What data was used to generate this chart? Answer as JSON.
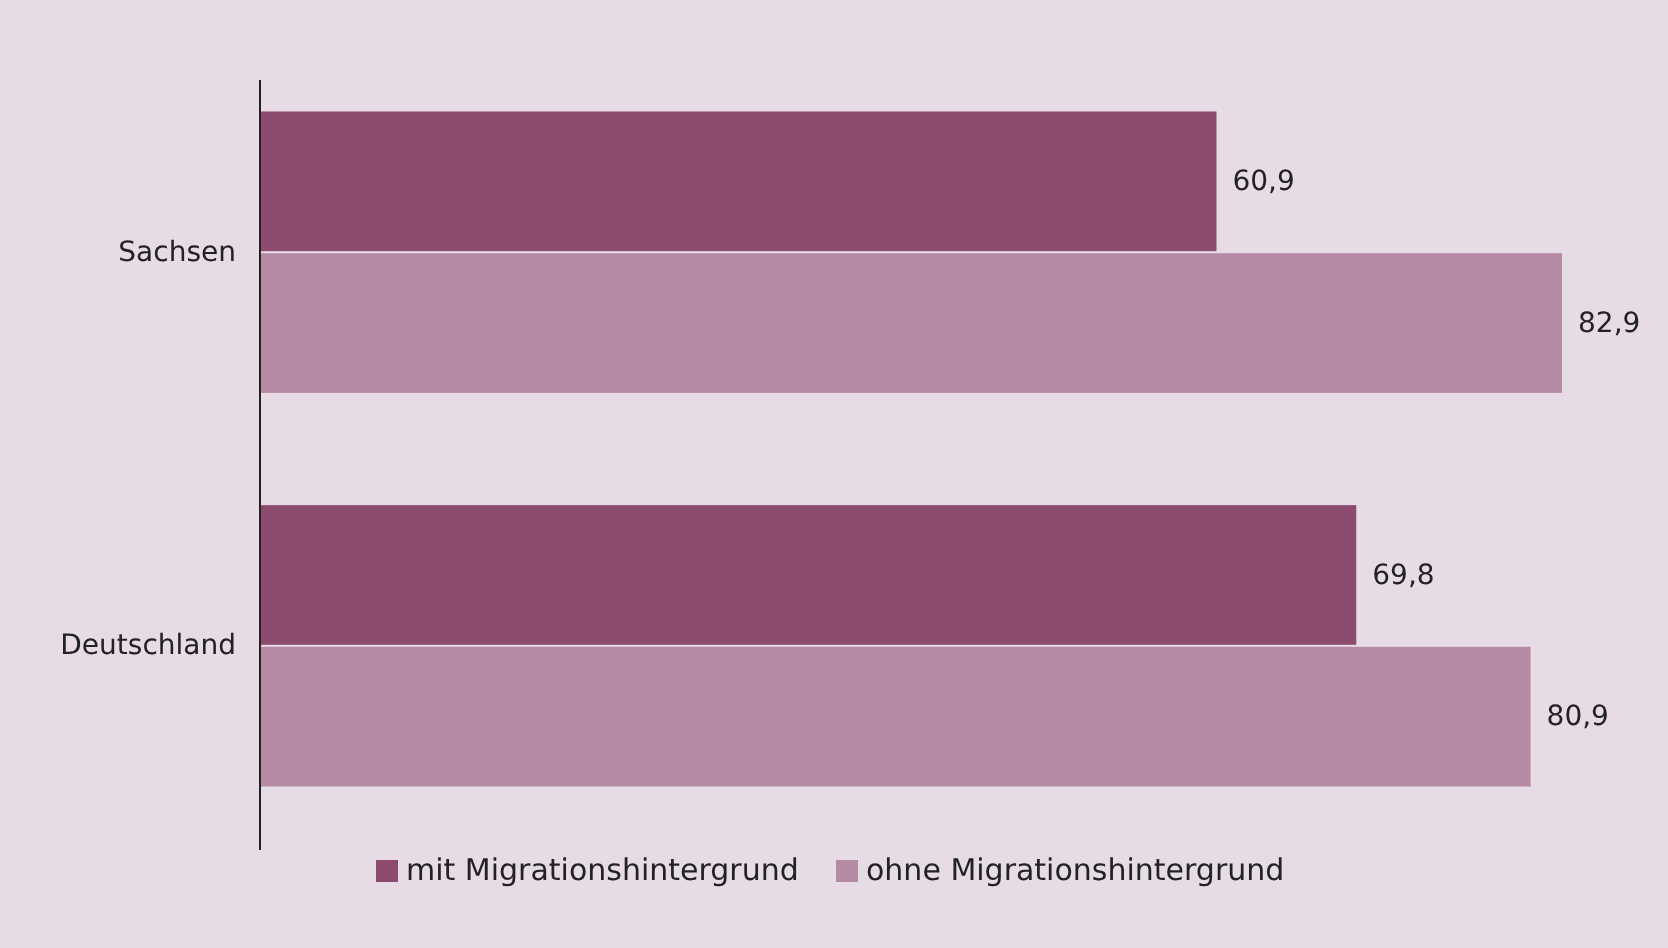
{
  "chart_data": {
    "type": "bar",
    "orientation": "horizontal",
    "categories": [
      "Sachsen",
      "Deutschland"
    ],
    "series": [
      {
        "name": "mit Migrationshintergrund",
        "color": "#8b4a6e",
        "values": [
          60.9,
          69.8
        ],
        "value_labels": [
          "60,9",
          "69,8"
        ]
      },
      {
        "name": "ohne Migrationshintergrund",
        "color": "#b58aa5",
        "values": [
          82.9,
          80.9
        ],
        "value_labels": [
          "82,9",
          "80,9"
        ]
      }
    ],
    "legend": "bottom"
  }
}
